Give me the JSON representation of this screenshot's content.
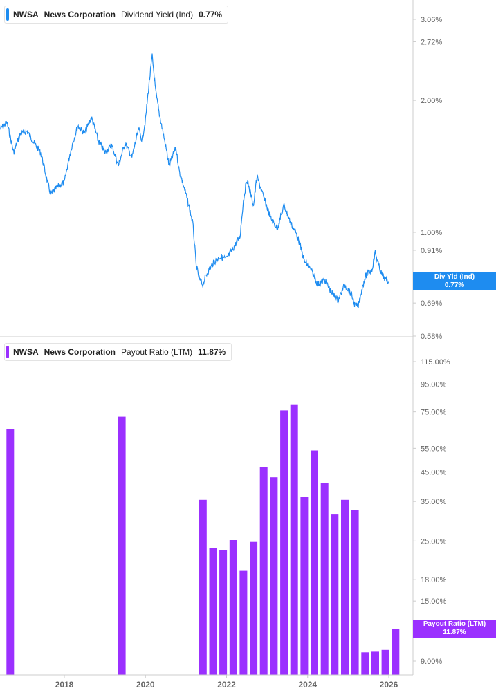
{
  "colors": {
    "yield": "#1e8cf0",
    "payout": "#9b30ff",
    "axis_text": "#666666",
    "divider": "#cccccc"
  },
  "top_legend": {
    "ticker": "NWSA",
    "company": "News Corporation",
    "metric": "Dividend Yield (Ind)",
    "value": "0.77%"
  },
  "bottom_legend": {
    "ticker": "NWSA",
    "company": "News Corporation",
    "metric": "Payout Ratio (LTM)",
    "value": "11.87%"
  },
  "top_tag": {
    "label": "Div Yld (Ind)",
    "value": "0.77%"
  },
  "bottom_tag": {
    "label": "Payout Ratio (LTM)",
    "value": "11.87%"
  },
  "chart_data": [
    {
      "type": "line",
      "series": [
        {
          "name": "Dividend Yield (Ind)",
          "unit": "%"
        }
      ],
      "scale": "log",
      "ylim": [
        0.58,
        3.3
      ],
      "y_ticks": [
        {
          "v": 3.06,
          "label": "3.06%"
        },
        {
          "v": 2.72,
          "label": "2.72%"
        },
        {
          "v": 2.0,
          "label": "2.00%"
        },
        {
          "v": 1.0,
          "label": "1.00%"
        },
        {
          "v": 0.91,
          "label": "0.91%"
        },
        {
          "v": 0.69,
          "label": "0.69%"
        },
        {
          "v": 0.58,
          "label": "0.58%"
        }
      ],
      "points": [
        [
          "2016-06",
          1.72
        ],
        [
          "2016-08",
          1.78
        ],
        [
          "2016-10",
          1.52
        ],
        [
          "2016-12",
          1.68
        ],
        [
          "2017-02",
          1.7
        ],
        [
          "2017-04",
          1.6
        ],
        [
          "2017-06",
          1.52
        ],
        [
          "2017-08",
          1.3
        ],
        [
          "2017-09",
          1.22
        ],
        [
          "2017-11",
          1.27
        ],
        [
          "2018-01",
          1.3
        ],
        [
          "2018-03",
          1.55
        ],
        [
          "2018-05",
          1.75
        ],
        [
          "2018-07",
          1.68
        ],
        [
          "2018-09",
          1.83
        ],
        [
          "2018-11",
          1.62
        ],
        [
          "2019-01",
          1.52
        ],
        [
          "2019-03",
          1.58
        ],
        [
          "2019-05",
          1.42
        ],
        [
          "2019-07",
          1.6
        ],
        [
          "2019-09",
          1.48
        ],
        [
          "2019-11",
          1.72
        ],
        [
          "2019-12",
          1.62
        ],
        [
          "2020-01",
          1.8
        ],
        [
          "2020-02",
          2.15
        ],
        [
          "2020-03",
          2.52
        ],
        [
          "2020-04",
          2.1
        ],
        [
          "2020-05",
          1.88
        ],
        [
          "2020-06",
          1.72
        ],
        [
          "2020-08",
          1.42
        ],
        [
          "2020-10",
          1.56
        ],
        [
          "2020-11",
          1.38
        ],
        [
          "2021-01",
          1.22
        ],
        [
          "2021-03",
          1.05
        ],
        [
          "2021-04",
          0.84
        ],
        [
          "2021-05",
          0.78
        ],
        [
          "2021-06",
          0.76
        ],
        [
          "2021-07",
          0.8
        ],
        [
          "2021-09",
          0.85
        ],
        [
          "2021-11",
          0.88
        ],
        [
          "2022-01",
          0.87
        ],
        [
          "2022-03",
          0.92
        ],
        [
          "2022-05",
          0.98
        ],
        [
          "2022-06",
          1.18
        ],
        [
          "2022-07",
          1.32
        ],
        [
          "2022-09",
          1.15
        ],
        [
          "2022-10",
          1.34
        ],
        [
          "2022-12",
          1.2
        ],
        [
          "2023-02",
          1.08
        ],
        [
          "2023-04",
          1.02
        ],
        [
          "2023-06",
          1.15
        ],
        [
          "2023-08",
          1.05
        ],
        [
          "2023-10",
          0.98
        ],
        [
          "2023-12",
          0.86
        ],
        [
          "2024-02",
          0.82
        ],
        [
          "2024-04",
          0.76
        ],
        [
          "2024-06",
          0.78
        ],
        [
          "2024-08",
          0.73
        ],
        [
          "2024-10",
          0.7
        ],
        [
          "2024-12",
          0.76
        ],
        [
          "2025-02",
          0.72
        ],
        [
          "2025-03",
          0.68
        ],
        [
          "2025-04",
          0.68
        ],
        [
          "2025-05",
          0.74
        ],
        [
          "2025-06",
          0.79
        ],
        [
          "2025-07",
          0.81
        ],
        [
          "2025-08",
          0.82
        ],
        [
          "2025-09",
          0.9
        ],
        [
          "2025-10",
          0.84
        ],
        [
          "2025-11",
          0.8
        ],
        [
          "2025-12",
          0.78
        ],
        [
          "2026-01",
          0.77
        ]
      ]
    },
    {
      "type": "bar",
      "series": [
        {
          "name": "Payout Ratio (LTM)",
          "unit": "%"
        }
      ],
      "scale": "log",
      "ylim": [
        8.6,
        140
      ],
      "y_ticks": [
        {
          "v": 115,
          "label": "115.00%"
        },
        {
          "v": 95,
          "label": "95.00%"
        },
        {
          "v": 75,
          "label": "75.00%"
        },
        {
          "v": 55,
          "label": "55.00%"
        },
        {
          "v": 45,
          "label": "45.00%"
        },
        {
          "v": 35,
          "label": "35.00%"
        },
        {
          "v": 25,
          "label": "25.00%"
        },
        {
          "v": 18,
          "label": "18.00%"
        },
        {
          "v": 15,
          "label": "15.00%"
        },
        {
          "v": 9,
          "label": "9.00%"
        }
      ],
      "bars": [
        [
          "2016-09",
          65
        ],
        [
          "2019-06",
          72
        ],
        [
          "2021-06",
          35.5
        ],
        [
          "2021-09",
          23.5
        ],
        [
          "2021-12",
          23.2
        ],
        [
          "2022-03",
          25.2
        ],
        [
          "2022-06",
          19.5
        ],
        [
          "2022-09",
          24.8
        ],
        [
          "2022-12",
          47
        ],
        [
          "2023-03",
          43
        ],
        [
          "2023-06",
          76
        ],
        [
          "2023-09",
          80
        ],
        [
          "2023-12",
          36.5
        ],
        [
          "2024-03",
          54
        ],
        [
          "2024-06",
          41
        ],
        [
          "2024-09",
          31.5
        ],
        [
          "2024-12",
          35.5
        ],
        [
          "2025-03",
          32.5
        ],
        [
          "2025-06",
          9.7
        ],
        [
          "2025-09",
          9.75
        ],
        [
          "2025-12",
          9.9
        ],
        [
          "2026-03",
          11.87
        ]
      ]
    }
  ],
  "x_axis": {
    "ticks": [
      {
        "date": "2018-01",
        "label": "2018"
      },
      {
        "date": "2020-01",
        "label": "2020"
      },
      {
        "date": "2022-01",
        "label": "2022"
      },
      {
        "date": "2024-01",
        "label": "2024"
      },
      {
        "date": "2026-01",
        "label": "2026"
      }
    ]
  }
}
